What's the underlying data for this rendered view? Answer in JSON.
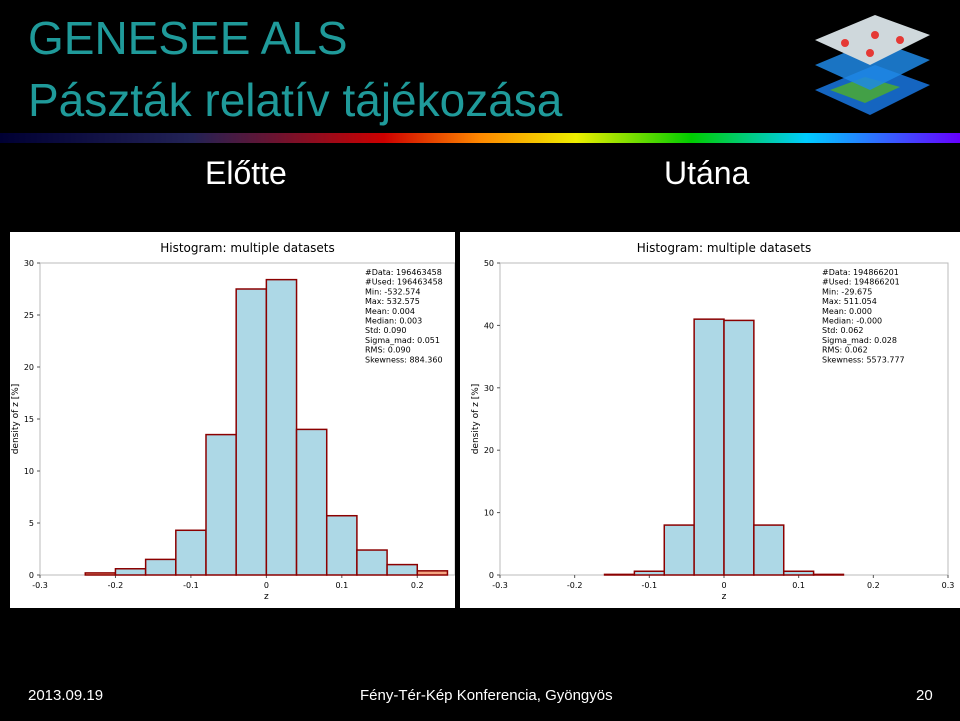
{
  "header": {
    "title": "GENESEE ALS",
    "subtitle": "Pászták relatív tájékozása"
  },
  "labels": {
    "before": "Előtte",
    "after": "Utána"
  },
  "footer": {
    "date": "2013.09.19",
    "event": "Fény-Tér-Kép Konferencia, Gyöngyös",
    "page": "20"
  },
  "chart_data": [
    {
      "type": "histogram",
      "title": "Histogram: multiple datasets",
      "x_label": "z",
      "y_label": "density of z [%]",
      "bins": [
        -0.24,
        -0.2,
        -0.16,
        -0.12,
        -0.08,
        -0.04,
        0,
        0.04,
        0.08,
        0.12,
        0.16,
        0.2,
        0.24
      ],
      "values": [
        0.2,
        0.6,
        1.5,
        4.3,
        13.5,
        27.5,
        28.4,
        14,
        5.7,
        2.4,
        1.0,
        0.4
      ],
      "colors": [
        "#f4a582",
        "#add8e6",
        "#add8e6",
        "#add8e6",
        "#add8e6",
        "#add8e6",
        "#add8e6",
        "#add8e6",
        "#add8e6",
        "#add8e6",
        "#add8e6",
        "#f4a582"
      ],
      "edge_color": "#8b0000",
      "xlim": [
        -0.3,
        0.25
      ],
      "xticks": [
        -0.3,
        -0.2,
        -0.1,
        0,
        0.1,
        0.2
      ],
      "ylim": [
        0,
        30
      ],
      "yticks": [
        0,
        5,
        10,
        15,
        20,
        25,
        30
      ],
      "annotations": [
        "#Data: 196463458",
        "#Used: 196463458",
        "Min: -532.574",
        "Max: 532.575",
        "Mean: 0.004",
        "Median: 0.003",
        "Std: 0.090",
        "Sigma_mad: 0.051",
        "RMS: 0.090",
        "Skewness: 884.360"
      ]
    },
    {
      "type": "histogram",
      "title": "Histogram: multiple datasets",
      "x_label": "z",
      "y_label": "density of z [%]",
      "bins": [
        -0.16,
        -0.12,
        -0.08,
        -0.04,
        0,
        0.04,
        0.08,
        0.12,
        0.16
      ],
      "values": [
        0.1,
        0.6,
        8,
        41,
        40.8,
        8,
        0.6,
        0.1
      ],
      "colors": [
        "#f4a582",
        "#add8e6",
        "#add8e6",
        "#add8e6",
        "#add8e6",
        "#add8e6",
        "#add8e6",
        "#f4a582"
      ],
      "edge_color": "#8b0000",
      "xlim": [
        -0.3,
        0.3
      ],
      "xticks": [
        -0.3,
        -0.2,
        -0.1,
        0,
        0.1,
        0.2,
        0.3
      ],
      "ylim": [
        0,
        50
      ],
      "yticks": [
        0,
        10,
        20,
        30,
        40,
        50
      ],
      "annotations": [
        "#Data: 194866201",
        "#Used: 194866201",
        "Min: -29.675",
        "Max: 511.054",
        "Mean: 0.000",
        "Median: -0.000",
        "Std: 0.062",
        "Sigma_mad: 0.028",
        "RMS: 0.062",
        "Skewness: 5573.777"
      ]
    }
  ]
}
